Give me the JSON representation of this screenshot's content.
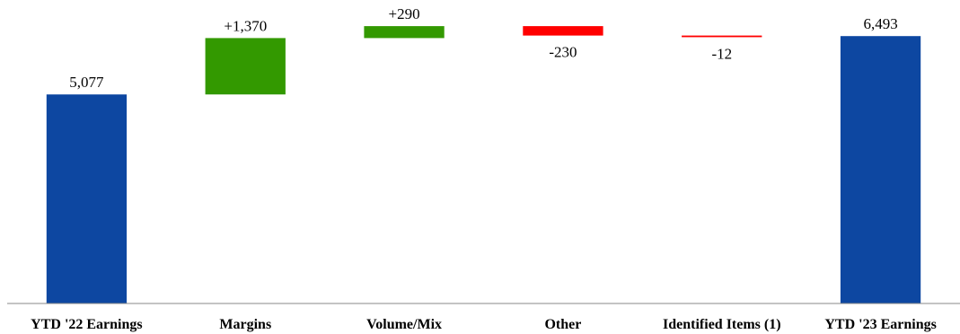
{
  "chart_data": {
    "type": "waterfall",
    "categories": [
      "YTD '22 Earnings",
      "Margins",
      "Volume/Mix",
      "Other",
      "Identified Items (1)",
      "YTD '23 Earnings"
    ],
    "values": [
      5077,
      1370,
      290,
      -230,
      -12,
      6493
    ],
    "kinds": [
      "total",
      "delta",
      "delta",
      "delta",
      "delta",
      "total"
    ],
    "data_labels": [
      "5,077",
      "+1,370",
      "+290",
      "-230",
      "-12",
      "6,493"
    ],
    "ylim": [
      0,
      7000
    ],
    "grid": false,
    "legend": "none",
    "title": "",
    "xlabel": "",
    "ylabel": "",
    "colors": {
      "total": "#0d47a1",
      "increase": "#339900",
      "decrease": "#ff0000",
      "axis": "#888888"
    }
  }
}
